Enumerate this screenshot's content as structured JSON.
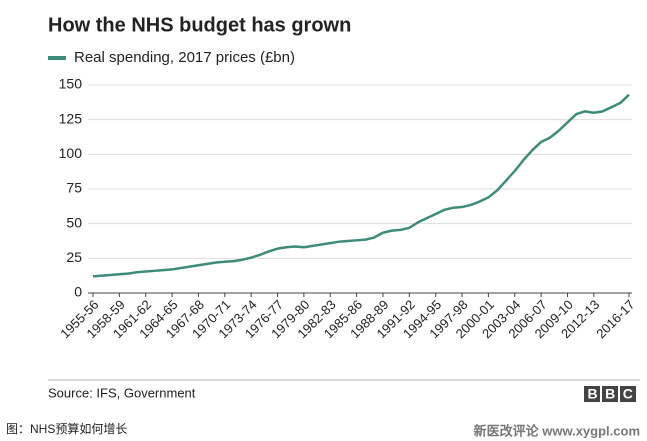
{
  "chart_data": {
    "type": "line",
    "title": "How the NHS budget has grown",
    "source": "Source: IFS, Government",
    "logo": "BBC",
    "categories": [
      "1955-56",
      null,
      null,
      "1958-59",
      null,
      null,
      "1961-62",
      null,
      null,
      "1964-65",
      null,
      null,
      "1967-68",
      null,
      null,
      "1970-71",
      null,
      null,
      "1973-74",
      null,
      null,
      "1976-77",
      null,
      null,
      "1979-80",
      null,
      null,
      "1982-83",
      null,
      null,
      "1985-86",
      null,
      null,
      "1988-89",
      null,
      null,
      "1991-92",
      null,
      null,
      "1994-95",
      null,
      null,
      "1997-98",
      null,
      null,
      "2000-01",
      null,
      null,
      "2003-04",
      null,
      null,
      "2006-07",
      null,
      null,
      "2009-10",
      null,
      null,
      "2012-13",
      null,
      null,
      null,
      "2016-17"
    ],
    "series": [
      {
        "name": "Real spending, 2017 prices (£bn)",
        "color": "#3d8c7b",
        "values": [
          12,
          12.5,
          13,
          13.5,
          14,
          15,
          15.5,
          16,
          16.5,
          17,
          18,
          19,
          20,
          21,
          22,
          22.5,
          23,
          24,
          25.5,
          27.5,
          30,
          32,
          33,
          33.5,
          33,
          34,
          35,
          36,
          37,
          37.5,
          38,
          38.5,
          40,
          43.5,
          45,
          45.5,
          47,
          51,
          54,
          57,
          60,
          61.5,
          62,
          63.5,
          66,
          69,
          74,
          81,
          88,
          96,
          103,
          109,
          112,
          117,
          123,
          129,
          131,
          130,
          131,
          134,
          137,
          143
        ]
      }
    ],
    "ylim": [
      0,
      150
    ],
    "yticks": [
      0,
      25,
      50,
      75,
      100,
      125,
      150
    ],
    "grid": true
  },
  "caption": "图：NHS预算如何增长",
  "watermark": "新医改评论 www.xygpl.com"
}
